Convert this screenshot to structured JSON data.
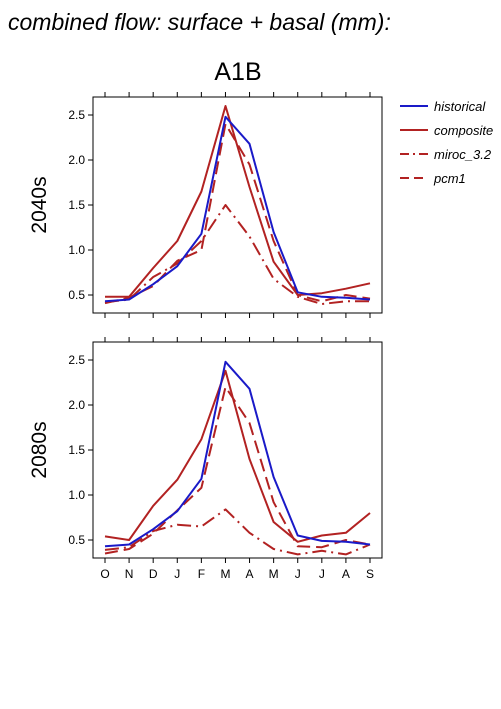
{
  "chart_data": {
    "title": "combined flow: surface + basal (mm):",
    "scenario": "A1B",
    "type": "line",
    "x": [
      "O",
      "N",
      "D",
      "J",
      "F",
      "M",
      "A",
      "M",
      "J",
      "J",
      "A",
      "S"
    ],
    "ylim": [
      0.3,
      2.7
    ],
    "yticks": [
      0.5,
      1.0,
      1.5,
      2.0,
      2.5
    ],
    "ytick_labels": [
      "0.5",
      "1.0",
      "1.5",
      "2.0",
      "2.5"
    ],
    "legend": {
      "placement": "right",
      "entries": [
        {
          "name": "historical",
          "color": "#1a1ac8",
          "dash": "solid"
        },
        {
          "name": "composite",
          "color": "#b22222",
          "dash": "solid"
        },
        {
          "name": "miroc_3.2",
          "color": "#b22222",
          "dash": "dashdot"
        },
        {
          "name": "pcm1",
          "color": "#b22222",
          "dash": "longdash"
        }
      ]
    },
    "panels": [
      {
        "label": "2040s",
        "series": [
          {
            "name": "historical",
            "values": [
              0.43,
              0.45,
              0.62,
              0.82,
              1.18,
              2.48,
              2.18,
              1.2,
              0.53,
              0.48,
              0.47,
              0.45
            ]
          },
          {
            "name": "composite",
            "values": [
              0.48,
              0.48,
              0.8,
              1.1,
              1.65,
              2.6,
              1.7,
              0.87,
              0.5,
              0.52,
              0.57,
              0.63
            ]
          },
          {
            "name": "miroc_3.2",
            "values": [
              0.42,
              0.45,
              0.7,
              0.85,
              1.1,
              1.5,
              1.15,
              0.68,
              0.48,
              0.4,
              0.43,
              0.43
            ]
          },
          {
            "name": "pcm1",
            "values": [
              0.41,
              0.47,
              0.6,
              0.88,
              1.0,
              2.4,
              1.95,
              1.1,
              0.5,
              0.43,
              0.5,
              0.46
            ]
          }
        ]
      },
      {
        "label": "2080s",
        "series": [
          {
            "name": "historical",
            "values": [
              0.43,
              0.45,
              0.62,
              0.82,
              1.18,
              2.48,
              2.18,
              1.2,
              0.55,
              0.49,
              0.48,
              0.45
            ]
          },
          {
            "name": "composite",
            "values": [
              0.54,
              0.5,
              0.88,
              1.17,
              1.62,
              2.38,
              1.4,
              0.7,
              0.48,
              0.55,
              0.58,
              0.8
            ]
          },
          {
            "name": "miroc_3.2",
            "values": [
              0.39,
              0.42,
              0.6,
              0.67,
              0.65,
              0.84,
              0.58,
              0.4,
              0.34,
              0.38,
              0.34,
              0.45
            ]
          },
          {
            "name": "pcm1",
            "values": [
              0.35,
              0.4,
              0.57,
              0.83,
              1.08,
              2.2,
              1.8,
              0.92,
              0.43,
              0.42,
              0.5,
              0.45
            ]
          }
        ]
      }
    ]
  }
}
